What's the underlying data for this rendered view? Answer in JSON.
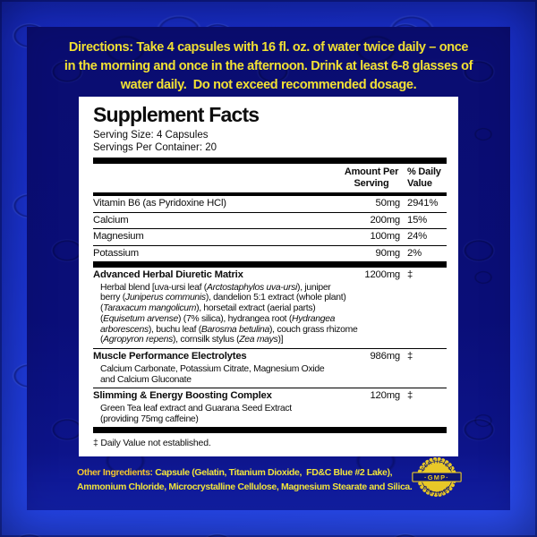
{
  "colors": {
    "frame_blue": "#1d38d6",
    "panel_navy": "#0a0e74",
    "accent_yellow": "#f2e134",
    "other_ingredients_label_yellow": "#f3c62e",
    "facts_bg": "#ffffff",
    "facts_text": "#0d0d0d",
    "badge_yellow": "#e9c928",
    "badge_navy": "#0d1473"
  },
  "directions": {
    "lines": [
      "Directions: Take 4 capsules with 16 fl. oz. of water twice daily – once",
      "in the morning and once in the afternoon. Drink at least 6-8 glasses of",
      "water daily.  Do not exceed recommended dosage."
    ]
  },
  "facts": {
    "title": "Supplement Facts",
    "serving_size": "Serving Size: 4 Capsules",
    "servings_per_container": "Servings Per Container: 20",
    "columns": {
      "amount_line1": "Amount Per",
      "amount_line2": "Serving",
      "dv_line1": "% Daily",
      "dv_line2": "Value"
    },
    "nutrients": [
      {
        "name": "Vitamin B6 (as Pyridoxine HCl)",
        "amount": "50mg",
        "dv": "2941%"
      },
      {
        "name": "Calcium",
        "amount": "200mg",
        "dv": "15%"
      },
      {
        "name": "Magnesium",
        "amount": "100mg",
        "dv": "24%"
      },
      {
        "name": "Potassium",
        "amount": "90mg",
        "dv": "2%"
      }
    ],
    "blends": [
      {
        "name": "Advanced Herbal Diuretic Matrix",
        "amount": "1200mg",
        "dv": "‡",
        "desc_lines": [
          [
            {
              "t": "Herbal blend [uva-ursi leaf ("
            },
            {
              "t": "Arctostaphylos uva-ursi",
              "i": true
            },
            {
              "t": "), juniper"
            }
          ],
          [
            {
              "t": "berry ("
            },
            {
              "t": "Juniperus communis",
              "i": true
            },
            {
              "t": "), dandelion 5:1 extract (whole plant)"
            }
          ],
          [
            {
              "t": "("
            },
            {
              "t": "Taraxacum mangolicum",
              "i": true
            },
            {
              "t": "), horsetail extract (aerial parts)"
            }
          ],
          [
            {
              "t": "("
            },
            {
              "t": "Equisetum arvense",
              "i": true
            },
            {
              "t": ") (7% silica), hydrangea root ("
            },
            {
              "t": "Hydrangea",
              "i": true
            }
          ],
          [
            {
              "t": "arborescens",
              "i": true
            },
            {
              "t": "), buchu leaf ("
            },
            {
              "t": "Barosma betulina",
              "i": true
            },
            {
              "t": "), couch grass rhizome"
            }
          ],
          [
            {
              "t": "("
            },
            {
              "t": "Agropyron repens",
              "i": true
            },
            {
              "t": "), cornsilk stylus ("
            },
            {
              "t": "Zea mays",
              "i": true
            },
            {
              "t": ")]"
            }
          ]
        ]
      },
      {
        "name": "Muscle Performance Electrolytes",
        "amount": "986mg",
        "dv": "‡",
        "desc_lines": [
          [
            {
              "t": "Calcium Carbonate, Potassium Citrate, Magnesium Oxide"
            }
          ],
          [
            {
              "t": "and Calcium Gluconate"
            }
          ]
        ]
      },
      {
        "name": "Slimming & Energy Boosting Complex",
        "amount": "120mg",
        "dv": "‡",
        "desc_lines": [
          [
            {
              "t": "Green Tea leaf extract and Guarana Seed Extract"
            }
          ],
          [
            {
              "t": "(providing 75mg caffeine)"
            }
          ]
        ]
      }
    ],
    "footnote": "‡ Daily Value not established."
  },
  "other_ingredients": {
    "lines": [
      [
        {
          "t": "Other Ingredients: ",
          "label": true
        },
        {
          "t": "Capsule (Gelatin, Titanium Dioxide,  FD&C Blue #2 Lake),"
        }
      ],
      [
        {
          "t": "Ammonium Chloride, Microcrystalline Cellulose, Magnesium Stearate and Silica."
        }
      ]
    ]
  },
  "badge": {
    "top": "CERTIFIED",
    "center": "·GMP·",
    "bottom": "CERTIFIED"
  }
}
